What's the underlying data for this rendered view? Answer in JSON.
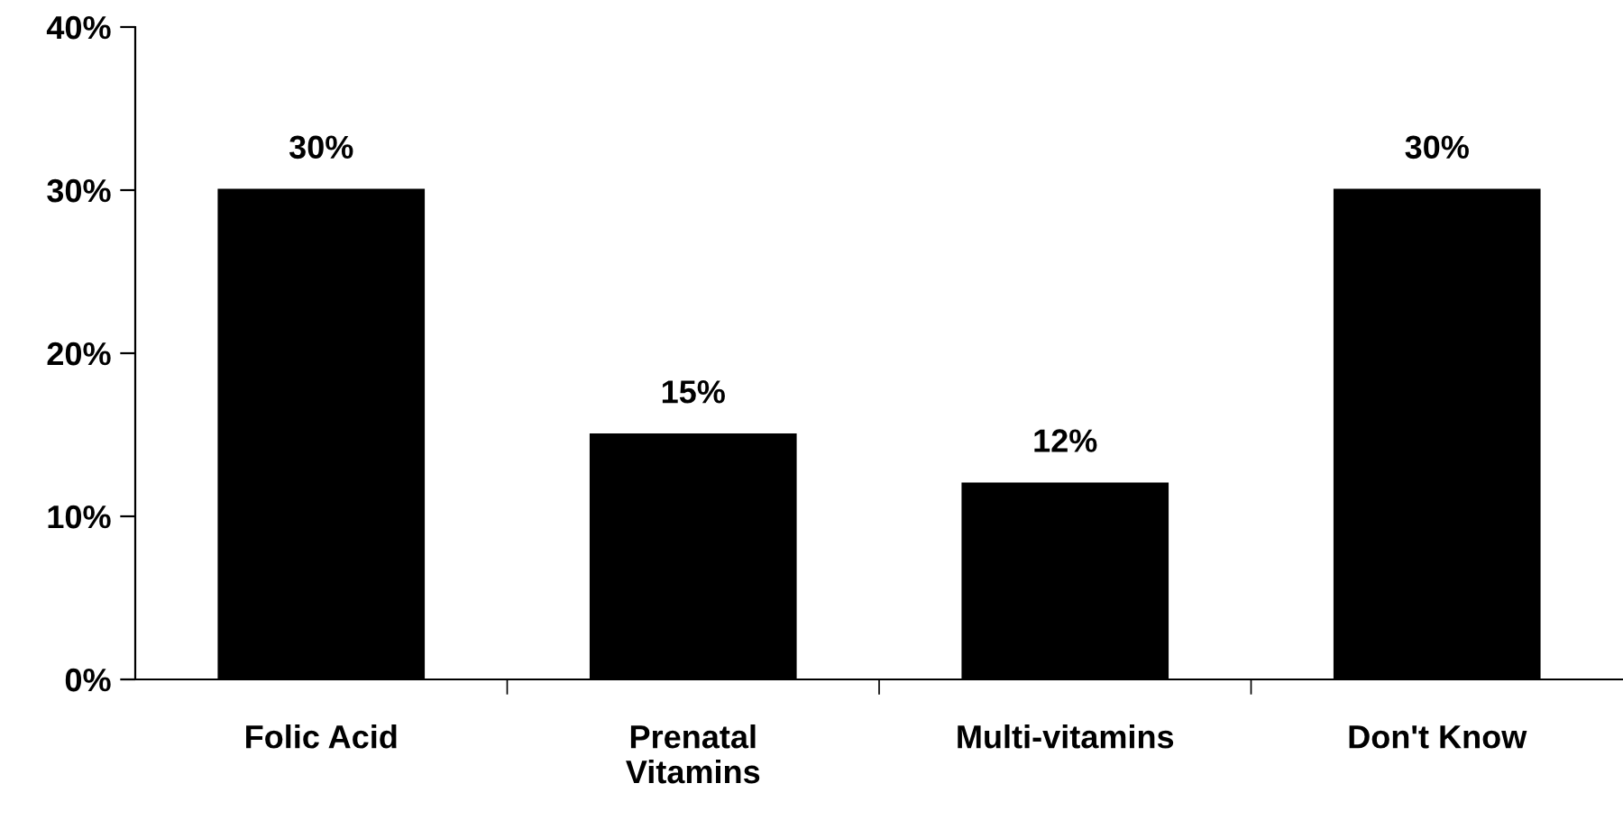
{
  "chart_data": {
    "type": "bar",
    "categories": [
      "Folic Acid",
      "Prenatal\nVitamins",
      "Multi-vitamins",
      "Don't Know"
    ],
    "values": [
      30,
      15,
      12,
      30
    ],
    "color": "#000000",
    "value_labels": [
      "30%",
      "15%",
      "12%",
      "30%"
    ],
    "ylim": [
      0,
      40
    ],
    "yticks": [
      {
        "value": 0,
        "label": "0%"
      },
      {
        "value": 10,
        "label": "10%"
      },
      {
        "value": 20,
        "label": "20%"
      },
      {
        "value": 30,
        "label": "30%"
      },
      {
        "value": 40,
        "label": "40%"
      }
    ],
    "grid": false,
    "legend": false
  }
}
